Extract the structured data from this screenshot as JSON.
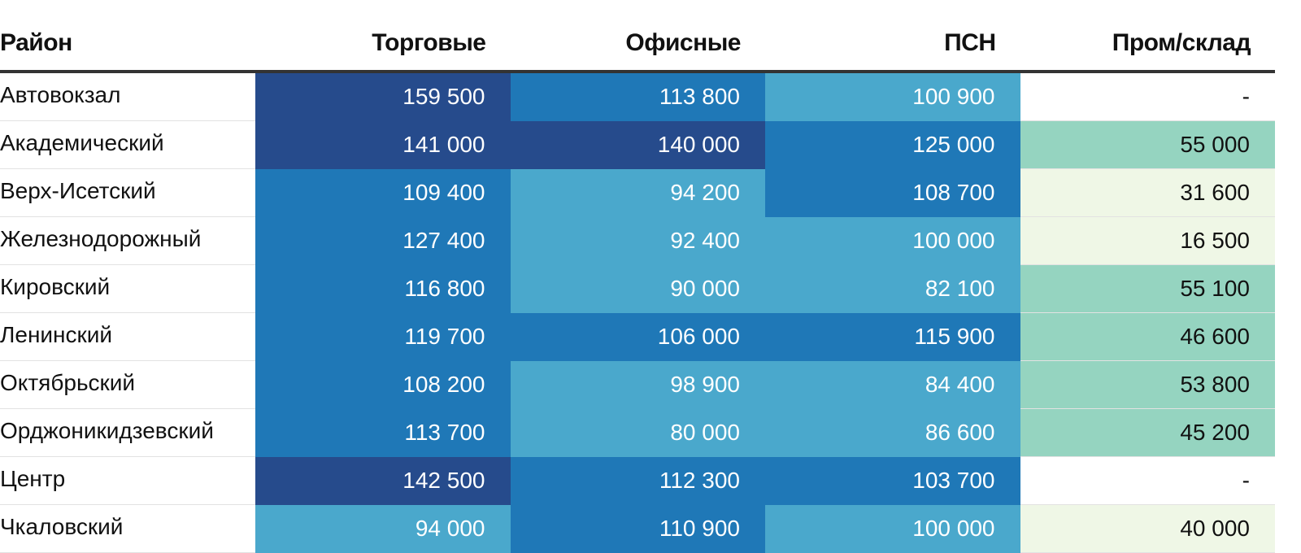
{
  "palette": {
    "dark_blue": "#264b8c",
    "mid_blue": "#1f78b7",
    "light_blue": "#4aa8cc",
    "mint": "#95d4c0",
    "pale_green": "#eff7e6",
    "white": "#ffffff",
    "light_text": "#ffffff",
    "dark_text": "#111111"
  },
  "table": {
    "columns": [
      "Район",
      "Торговые",
      "Офисные",
      "ПСН",
      "Пром/склад"
    ],
    "rows": [
      {
        "district": "Автовокзал",
        "cells": [
          {
            "value": "159 500",
            "shade": "dark_blue"
          },
          {
            "value": "113 800",
            "shade": "mid_blue"
          },
          {
            "value": "100 900",
            "shade": "light_blue"
          },
          {
            "value": "-",
            "shade": "white"
          }
        ]
      },
      {
        "district": "Академический",
        "cells": [
          {
            "value": "141 000",
            "shade": "dark_blue"
          },
          {
            "value": "140 000",
            "shade": "dark_blue"
          },
          {
            "value": "125 000",
            "shade": "mid_blue"
          },
          {
            "value": "55 000",
            "shade": "mint"
          }
        ]
      },
      {
        "district": "Верх-Исетский",
        "cells": [
          {
            "value": "109 400",
            "shade": "mid_blue"
          },
          {
            "value": "94 200",
            "shade": "light_blue"
          },
          {
            "value": "108 700",
            "shade": "mid_blue"
          },
          {
            "value": "31 600",
            "shade": "pale_green"
          }
        ]
      },
      {
        "district": "Железнодорожный",
        "cells": [
          {
            "value": "127 400",
            "shade": "mid_blue"
          },
          {
            "value": "92 400",
            "shade": "light_blue"
          },
          {
            "value": "100 000",
            "shade": "light_blue"
          },
          {
            "value": "16 500",
            "shade": "pale_green"
          }
        ]
      },
      {
        "district": "Кировский",
        "cells": [
          {
            "value": "116 800",
            "shade": "mid_blue"
          },
          {
            "value": "90 000",
            "shade": "light_blue"
          },
          {
            "value": "82 100",
            "shade": "light_blue"
          },
          {
            "value": "55 100",
            "shade": "mint"
          }
        ]
      },
      {
        "district": "Ленинский",
        "cells": [
          {
            "value": "119 700",
            "shade": "mid_blue"
          },
          {
            "value": "106 000",
            "shade": "mid_blue"
          },
          {
            "value": "115 900",
            "shade": "mid_blue"
          },
          {
            "value": "46 600",
            "shade": "mint"
          }
        ]
      },
      {
        "district": "Октябрьский",
        "cells": [
          {
            "value": "108 200",
            "shade": "mid_blue"
          },
          {
            "value": "98 900",
            "shade": "light_blue"
          },
          {
            "value": "84 400",
            "shade": "light_blue"
          },
          {
            "value": "53 800",
            "shade": "mint"
          }
        ]
      },
      {
        "district": "Орджоникидзевский",
        "cells": [
          {
            "value": "113 700",
            "shade": "mid_blue"
          },
          {
            "value": "80 000",
            "shade": "light_blue"
          },
          {
            "value": "86 600",
            "shade": "light_blue"
          },
          {
            "value": "45 200",
            "shade": "mint"
          }
        ]
      },
      {
        "district": "Центр",
        "cells": [
          {
            "value": "142 500",
            "shade": "dark_blue"
          },
          {
            "value": "112 300",
            "shade": "mid_blue"
          },
          {
            "value": "103 700",
            "shade": "mid_blue"
          },
          {
            "value": "-",
            "shade": "white"
          }
        ]
      },
      {
        "district": "Чкаловский",
        "cells": [
          {
            "value": "94 000",
            "shade": "light_blue"
          },
          {
            "value": "110 900",
            "shade": "mid_blue"
          },
          {
            "value": "100 000",
            "shade": "light_blue"
          },
          {
            "value": "40 000",
            "shade": "pale_green"
          }
        ]
      }
    ]
  }
}
